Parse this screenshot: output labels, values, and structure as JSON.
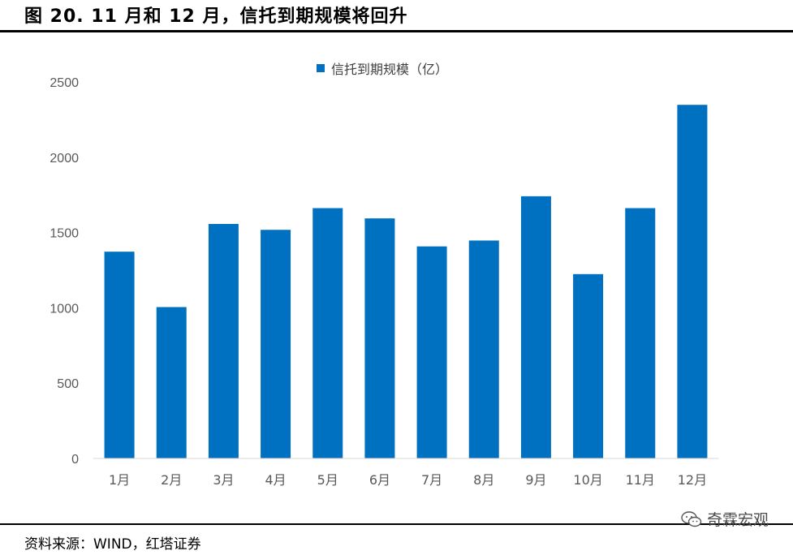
{
  "figure": {
    "title": "图 20. 11 月和 12 月，信托到期规模将回升",
    "source": "资料来源：WIND，红塔证券",
    "watermark": "奇霖宏观",
    "watermark_icon": "wechat-icon"
  },
  "colors": {
    "bar": "#0070C0",
    "axis": "#D9D9D9",
    "text": "#595959"
  },
  "chart_data": {
    "type": "bar",
    "categories": [
      "1月",
      "2月",
      "3月",
      "4月",
      "5月",
      "6月",
      "7月",
      "8月",
      "9月",
      "10月",
      "11月",
      "12月"
    ],
    "series": [
      {
        "name": "信托到期规模（亿）",
        "values": [
          1373,
          1005,
          1557,
          1518,
          1662,
          1594,
          1408,
          1447,
          1741,
          1224,
          1662,
          2348
        ]
      }
    ],
    "yticks": [
      0,
      500,
      1000,
      1500,
      2000,
      2500
    ],
    "ylim": [
      0,
      2500
    ],
    "legend": "top-center",
    "grid": false
  }
}
